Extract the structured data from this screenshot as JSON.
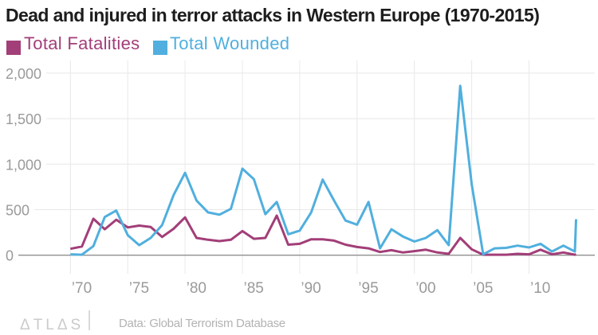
{
  "header": {
    "title": "Dead and injured in terror attacks in Western Europe (1970-2015)"
  },
  "legend": {
    "fatalities": "Total Fatalities",
    "wounded": "Total Wounded"
  },
  "footer": {
    "brand": "ATLAS",
    "source": "Data: Global Terrorism Database"
  },
  "colors": {
    "fatalities": "#a23e78",
    "wounded": "#50afde",
    "axis_label": "#9a9a9a",
    "gridline": "#e8e8e8",
    "zero_line": "#8f8f8f"
  },
  "chart_data": {
    "type": "line",
    "title": "Dead and injured in terror attacks in Western Europe (1970-2015)",
    "x": [
      1970,
      1971,
      1972,
      1973,
      1974,
      1975,
      1976,
      1977,
      1978,
      1979,
      1980,
      1981,
      1982,
      1983,
      1984,
      1985,
      1986,
      1987,
      1988,
      1989,
      1990,
      1991,
      1992,
      1993,
      1994,
      1995,
      1996,
      1997,
      1998,
      1999,
      2000,
      2001,
      2002,
      2003,
      2004,
      2005,
      2006,
      2007,
      2008,
      2009,
      2010,
      2011,
      2012,
      2013,
      2014,
      2015
    ],
    "series": [
      {
        "name": "Total Fatalities",
        "color": "#a23e78",
        "values": [
          70,
          95,
          400,
          285,
          390,
          305,
          325,
          310,
          200,
          290,
          415,
          190,
          170,
          155,
          170,
          265,
          180,
          190,
          435,
          115,
          125,
          175,
          175,
          160,
          115,
          90,
          75,
          35,
          55,
          30,
          45,
          60,
          30,
          15,
          190,
          65,
          5,
          5,
          5,
          15,
          10,
          60,
          10,
          30,
          5,
          10
        ]
      },
      {
        "name": "Total Wounded",
        "color": "#50afde",
        "values": [
          10,
          5,
          100,
          420,
          490,
          220,
          110,
          190,
          330,
          660,
          905,
          600,
          470,
          445,
          510,
          950,
          835,
          450,
          585,
          230,
          270,
          470,
          830,
          600,
          380,
          335,
          585,
          75,
          285,
          205,
          150,
          190,
          275,
          110,
          1860,
          780,
          10,
          75,
          80,
          105,
          85,
          125,
          40,
          105,
          40,
          395
        ]
      }
    ],
    "ylim": [
      0,
      2000
    ],
    "yticks": {
      "values": [
        0,
        500,
        1000,
        1500,
        2000
      ],
      "labels": [
        "0",
        "500",
        "1,000",
        "1,500",
        "2,000"
      ]
    },
    "xticks": {
      "values": [
        1970,
        1975,
        1980,
        1985,
        1990,
        1995,
        2000,
        2005,
        2010
      ],
      "labels": [
        "’70",
        "’75",
        "’80",
        "’85",
        "’90",
        "’95",
        "’00",
        "’05",
        "’10"
      ]
    },
    "grid": true,
    "legend_position": "top-left"
  }
}
